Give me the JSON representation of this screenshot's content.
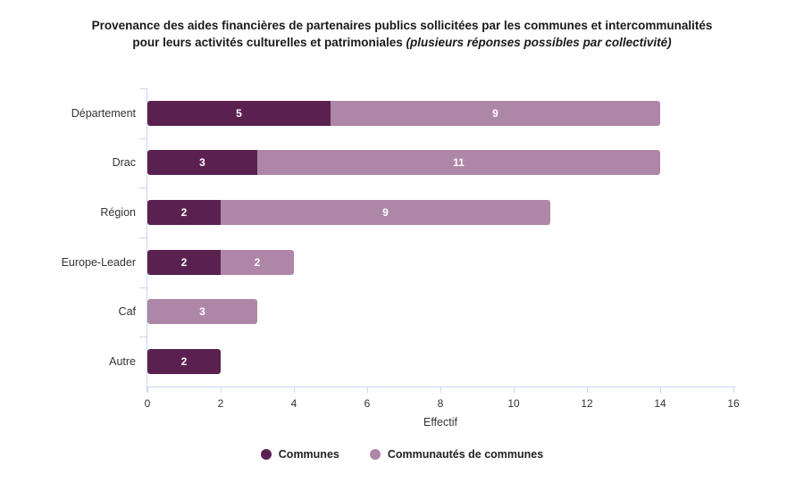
{
  "title": {
    "line1": "Provenance des aides financières de partenaires publics sollicitées par les communes et intercommunalités",
    "line2_normal": "pour leurs activités culturelles et patrimoniales ",
    "line2_italic": "(plusieurs réponses possibles par collectivité)"
  },
  "chart_data": {
    "type": "bar",
    "orientation": "horizontal",
    "stacked": true,
    "categories": [
      "Département",
      "Drac",
      "Région",
      "Europe-Leader",
      "Caf",
      "Autre"
    ],
    "series": [
      {
        "name": "Communes",
        "color": "#5a2150",
        "values": [
          5,
          3,
          2,
          2,
          0,
          2
        ]
      },
      {
        "name": "Communautés de communes",
        "color": "#ae86a7",
        "values": [
          9,
          11,
          9,
          2,
          3,
          0
        ]
      }
    ],
    "totals": [
      14,
      14,
      11,
      4,
      3,
      2
    ],
    "xlabel": "Effectif",
    "xlim": [
      0,
      16
    ],
    "xticks": [
      0,
      2,
      4,
      6,
      8,
      10,
      12,
      14,
      16
    ],
    "grid": false,
    "legend_position": "bottom",
    "axis_color": "#c9d6ec",
    "tick_label_color": "#333333",
    "value_label_color": "#ffffff"
  },
  "legend": {
    "items": [
      {
        "label": "Communes",
        "color": "#5a2150"
      },
      {
        "label": "Communautés de communes",
        "color": "#ae86a7"
      }
    ]
  }
}
